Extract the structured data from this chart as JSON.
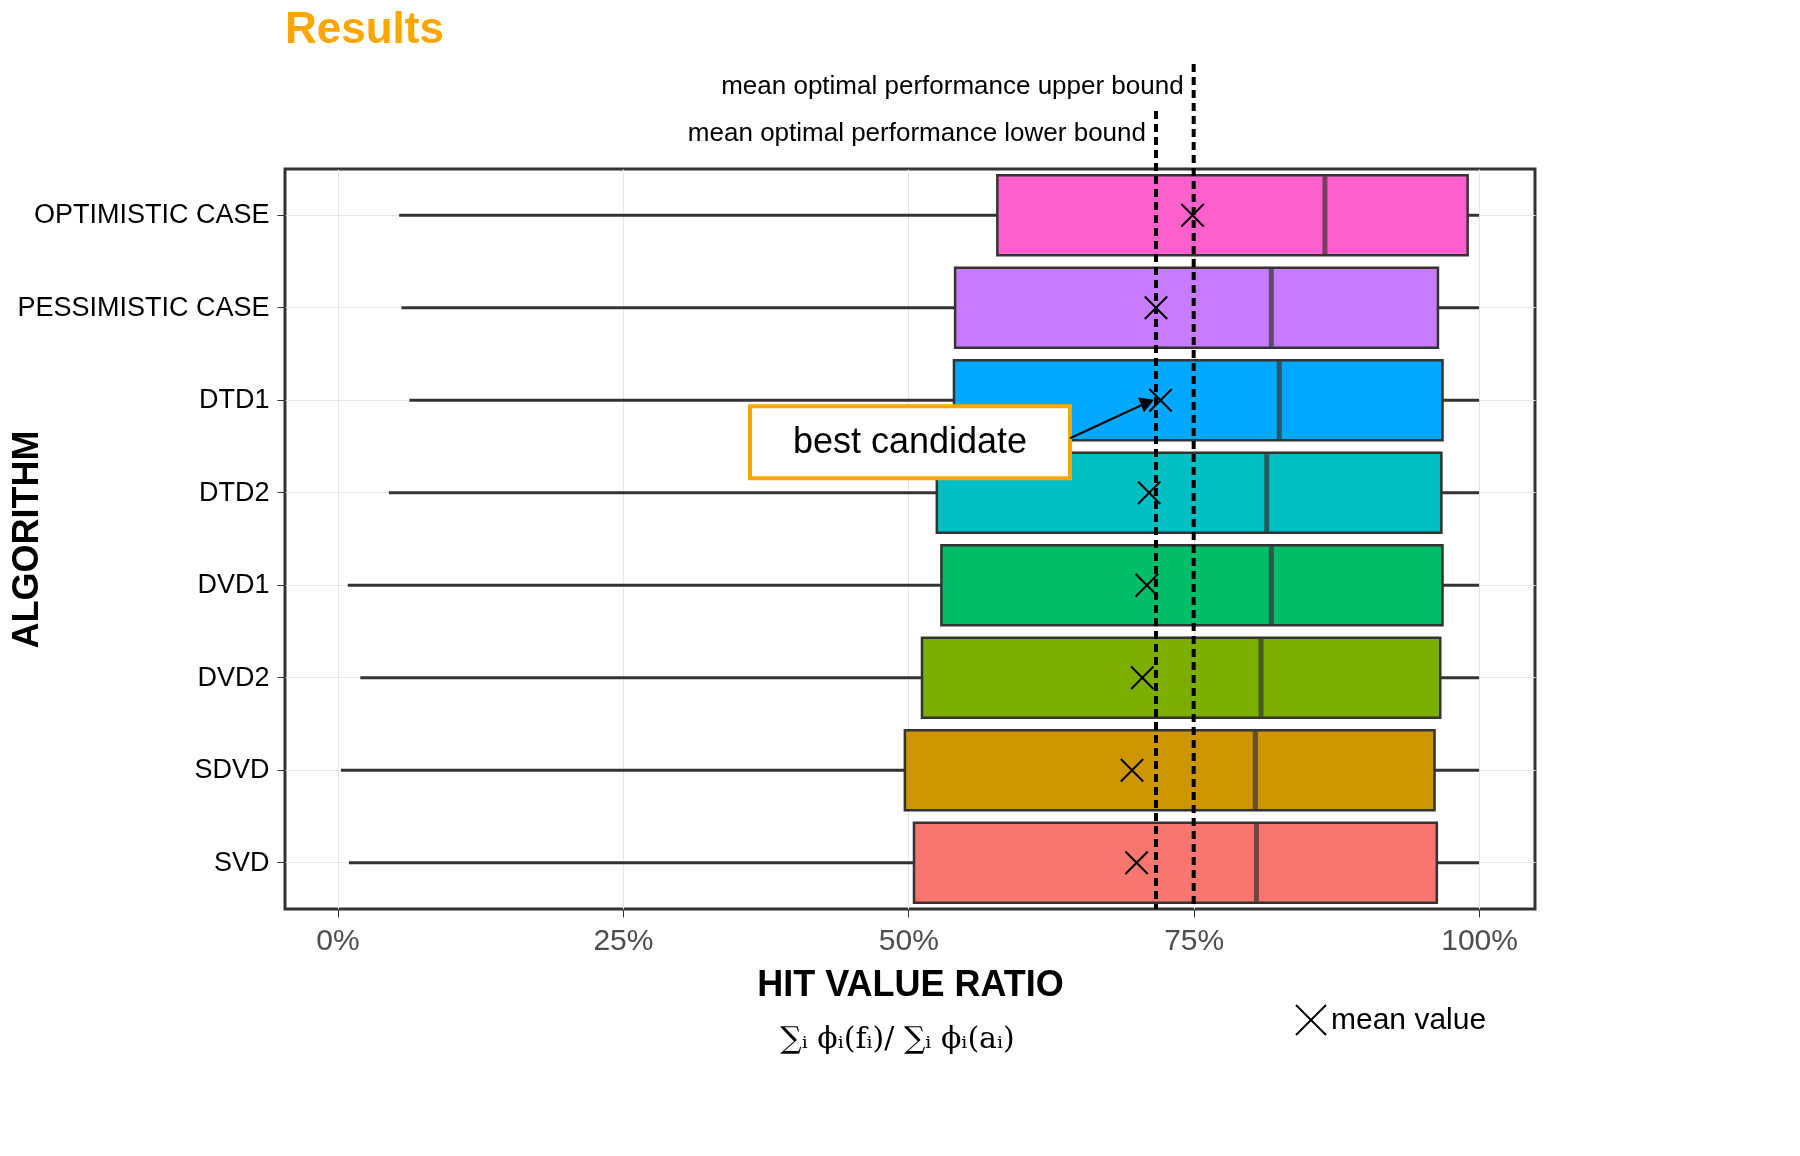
{
  "chart_data": {
    "type": "box",
    "title": "Results",
    "orientation": "horizontal",
    "categories": [
      "OPTIMISTIC CASE",
      "PESSIMISTIC CASE",
      "DTD1",
      "DTD2",
      "DVD1",
      "DVD2",
      "SDVD",
      "SVD"
    ],
    "colors": [
      "#ff61cc",
      "#c77cff",
      "#00a9ff",
      "#00bfc4",
      "#00be67",
      "#7cae00",
      "#cd9600",
      "#f8766d"
    ],
    "boxes": [
      {
        "low": 5.4,
        "q1": 57.8,
        "median": 86.5,
        "q3": 99.0,
        "high": 100,
        "mean": 74.9
      },
      {
        "low": 5.6,
        "q1": 54.1,
        "median": 81.8,
        "q3": 96.4,
        "high": 100,
        "mean": 71.7
      },
      {
        "low": 6.3,
        "q1": 54.0,
        "median": 82.5,
        "q3": 96.8,
        "high": 100,
        "mean": 72.1
      },
      {
        "low": 4.5,
        "q1": 52.5,
        "median": 81.4,
        "q3": 96.7,
        "high": 100,
        "mean": 71.1
      },
      {
        "low": 0.9,
        "q1": 52.9,
        "median": 81.8,
        "q3": 96.8,
        "high": 100,
        "mean": 70.9
      },
      {
        "low": 2.0,
        "q1": 51.2,
        "median": 80.9,
        "q3": 96.6,
        "high": 100,
        "mean": 70.5
      },
      {
        "low": 0.3,
        "q1": 49.7,
        "median": 80.4,
        "q3": 96.1,
        "high": 100,
        "mean": 69.6
      },
      {
        "low": 1.0,
        "q1": 50.5,
        "median": 80.5,
        "q3": 96.3,
        "high": 100,
        "mean": 70.0
      }
    ],
    "xlim": [
      -4.6,
      104.9
    ],
    "xticks": [
      {
        "value": 0,
        "label": "0%"
      },
      {
        "value": 25,
        "label": "25%"
      },
      {
        "value": 50,
        "label": "50%"
      },
      {
        "value": 75,
        "label": "75%"
      },
      {
        "value": 100,
        "label": "100%"
      }
    ],
    "xlabel": "HIT VALUE RATIO",
    "ylabel": "ALGORITHM",
    "grid": true,
    "marker": "cross",
    "ref_lines": [
      {
        "axis": "x",
        "value": 71.7,
        "label": "mean optimal performance lower bound",
        "line_style": "dashed"
      },
      {
        "axis": "x",
        "value": 75.0,
        "label": "mean optimal performance upper bound",
        "line_style": "dashed"
      }
    ],
    "annotations": [
      "best candidate",
      "mean value",
      "∑ᵢ ϕᵢ(fᵢ)/ ∑ᵢ ϕᵢ(aᵢ)"
    ]
  }
}
